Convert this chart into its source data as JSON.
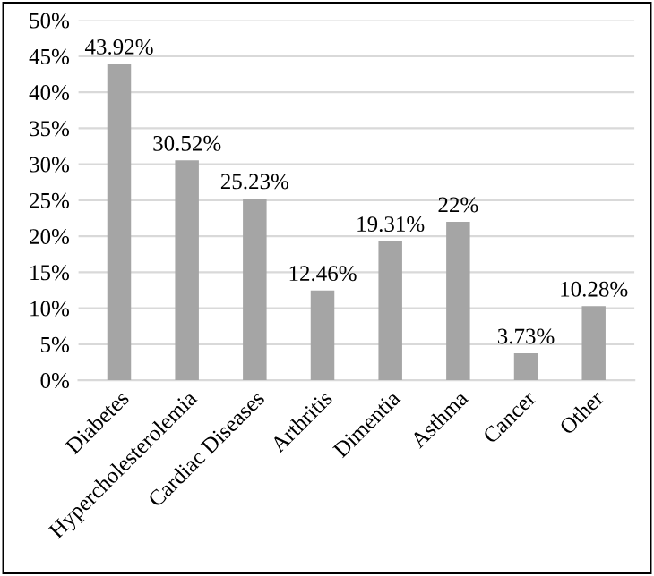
{
  "chart_data": {
    "type": "bar",
    "categories": [
      "Diabetes",
      "Hypercholesterolemia",
      "Cardiac Diseases",
      "Arthritis",
      "Dimentia",
      "Asthma",
      "Cancer",
      "Other"
    ],
    "values": [
      43.92,
      30.52,
      25.23,
      12.46,
      19.31,
      22,
      3.73,
      10.28
    ],
    "value_labels": [
      "43.92%",
      "30.52%",
      "25.23%",
      "12.46%",
      "19.31%",
      "22%",
      "3.73%",
      "10.28%"
    ],
    "color": "#a5a5a5",
    "ylim": [
      0,
      50
    ],
    "yticks": [
      {
        "value": 0,
        "label": "0%"
      },
      {
        "value": 5,
        "label": "5%"
      },
      {
        "value": 10,
        "label": "10%"
      },
      {
        "value": 15,
        "label": "15%"
      },
      {
        "value": 20,
        "label": "20%"
      },
      {
        "value": 25,
        "label": "25%"
      },
      {
        "value": 30,
        "label": "30%"
      },
      {
        "value": 35,
        "label": "35%"
      },
      {
        "value": 40,
        "label": "40%"
      },
      {
        "value": 45,
        "label": "45%"
      },
      {
        "value": 50,
        "label": "50%"
      }
    ],
    "grid": "y"
  }
}
